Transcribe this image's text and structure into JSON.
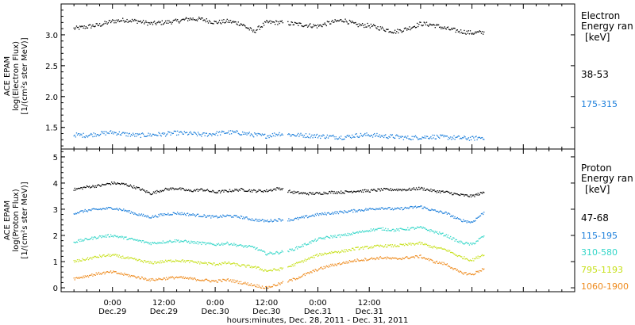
{
  "chart_data": [
    {
      "type": "scatter",
      "panel": "electron",
      "ylabel_lines": [
        "ACE EPAM",
        "log(Electron Flux)",
        "[1/(cm²s ster MeV)]"
      ],
      "ylim": [
        1.15,
        3.5
      ],
      "yticks": [
        "1.5",
        "2.0",
        "2.5",
        "3.0"
      ],
      "legend_title_lines": [
        "Electron",
        "Energy ran",
        "[keV]"
      ],
      "x_range_hours": [
        -12,
        108
      ],
      "data_end_hour": 87,
      "gap_hours": [
        [
          40,
          41
        ]
      ],
      "series": [
        {
          "name": "38-53",
          "color": "#000000",
          "x": [
            -9,
            -6,
            -3,
            0,
            3,
            6,
            9,
            12,
            15,
            18,
            21,
            24,
            27,
            30,
            33,
            36,
            39,
            42,
            45,
            48,
            51,
            54,
            57,
            60,
            63,
            66,
            69,
            72,
            75,
            78,
            81,
            84,
            87
          ],
          "y": [
            3.1,
            3.13,
            3.16,
            3.22,
            3.24,
            3.22,
            3.18,
            3.2,
            3.22,
            3.26,
            3.25,
            3.2,
            3.22,
            3.18,
            3.05,
            3.2,
            3.2,
            3.18,
            3.16,
            3.14,
            3.2,
            3.24,
            3.16,
            3.15,
            3.1,
            3.05,
            3.1,
            3.18,
            3.16,
            3.1,
            3.06,
            3.03,
            3.04
          ]
        },
        {
          "name": "175-315",
          "color": "#1c7fdb",
          "x": [
            -9,
            -6,
            -3,
            0,
            3,
            6,
            9,
            12,
            15,
            18,
            21,
            24,
            27,
            30,
            33,
            36,
            39,
            42,
            45,
            48,
            51,
            54,
            57,
            60,
            63,
            66,
            69,
            72,
            75,
            78,
            81,
            84,
            87
          ],
          "y": [
            1.38,
            1.37,
            1.4,
            1.42,
            1.39,
            1.37,
            1.38,
            1.39,
            1.41,
            1.4,
            1.38,
            1.4,
            1.42,
            1.41,
            1.38,
            1.36,
            1.4,
            1.38,
            1.37,
            1.36,
            1.35,
            1.34,
            1.37,
            1.38,
            1.36,
            1.35,
            1.33,
            1.34,
            1.35,
            1.34,
            1.33,
            1.32,
            1.34
          ]
        }
      ]
    },
    {
      "type": "scatter",
      "panel": "proton",
      "ylabel_lines": [
        "ACE EPAM",
        "log(Proton Flux)",
        "[1/(cm²s ster MeV)]"
      ],
      "ylim": [
        -0.15,
        5.3
      ],
      "yticks": [
        "0",
        "1",
        "2",
        "3",
        "4",
        "5"
      ],
      "legend_title_lines": [
        "Proton",
        "Energy ran",
        "[keV]"
      ],
      "x_range_hours": [
        -12,
        108
      ],
      "data_end_hour": 87,
      "gap_hours": [
        [
          40,
          41
        ]
      ],
      "series": [
        {
          "name": "47-68",
          "color": "#000000",
          "x": [
            -9,
            -6,
            -3,
            0,
            3,
            6,
            9,
            12,
            15,
            18,
            21,
            24,
            27,
            30,
            33,
            36,
            39,
            42,
            45,
            48,
            51,
            54,
            57,
            60,
            63,
            66,
            69,
            72,
            75,
            78,
            81,
            84,
            87
          ],
          "y": [
            3.75,
            3.85,
            3.9,
            4.0,
            3.95,
            3.8,
            3.6,
            3.75,
            3.8,
            3.7,
            3.75,
            3.65,
            3.7,
            3.75,
            3.7,
            3.7,
            3.8,
            3.65,
            3.6,
            3.6,
            3.65,
            3.65,
            3.7,
            3.7,
            3.75,
            3.75,
            3.75,
            3.8,
            3.7,
            3.65,
            3.55,
            3.5,
            3.65
          ]
        },
        {
          "name": "115-195",
          "color": "#1c7fdb",
          "x": [
            -9,
            -6,
            -3,
            0,
            3,
            6,
            9,
            12,
            15,
            18,
            21,
            24,
            27,
            30,
            33,
            36,
            39,
            42,
            45,
            48,
            51,
            54,
            57,
            60,
            63,
            66,
            69,
            72,
            75,
            78,
            81,
            84,
            87
          ],
          "y": [
            2.85,
            2.95,
            3.0,
            3.05,
            2.95,
            2.8,
            2.7,
            2.8,
            2.85,
            2.8,
            2.75,
            2.7,
            2.75,
            2.7,
            2.6,
            2.55,
            2.6,
            2.6,
            2.7,
            2.8,
            2.85,
            2.9,
            2.95,
            3.0,
            3.05,
            3.0,
            3.05,
            3.1,
            2.95,
            2.85,
            2.6,
            2.5,
            2.9
          ]
        },
        {
          "name": "310-580",
          "color": "#33d6c8",
          "x": [
            -9,
            -6,
            -3,
            0,
            3,
            6,
            9,
            12,
            15,
            18,
            21,
            24,
            27,
            30,
            33,
            36,
            39,
            42,
            45,
            48,
            51,
            54,
            57,
            60,
            63,
            66,
            69,
            72,
            75,
            78,
            81,
            84,
            87
          ],
          "y": [
            1.75,
            1.85,
            1.95,
            2.0,
            1.9,
            1.8,
            1.7,
            1.75,
            1.8,
            1.75,
            1.7,
            1.65,
            1.7,
            1.6,
            1.55,
            1.3,
            1.35,
            1.45,
            1.65,
            1.85,
            1.95,
            2.0,
            2.1,
            2.2,
            2.25,
            2.2,
            2.25,
            2.3,
            2.15,
            2.0,
            1.75,
            1.65,
            2.0
          ]
        },
        {
          "name": "795-1193",
          "color": "#c7e01a",
          "x": [
            -9,
            -6,
            -3,
            0,
            3,
            6,
            9,
            12,
            15,
            18,
            21,
            24,
            27,
            30,
            33,
            36,
            39,
            42,
            45,
            48,
            51,
            54,
            57,
            60,
            63,
            66,
            69,
            72,
            75,
            78,
            81,
            84,
            87
          ],
          "y": [
            1.0,
            1.1,
            1.2,
            1.25,
            1.15,
            1.05,
            0.95,
            1.0,
            1.05,
            1.0,
            0.95,
            0.9,
            0.95,
            0.85,
            0.8,
            0.65,
            0.7,
            0.85,
            1.05,
            1.25,
            1.35,
            1.4,
            1.5,
            1.55,
            1.6,
            1.6,
            1.65,
            1.7,
            1.55,
            1.45,
            1.2,
            1.05,
            1.3
          ]
        },
        {
          "name": "1060-1900",
          "color": "#ee8a1c",
          "x": [
            -9,
            -6,
            -3,
            0,
            3,
            6,
            9,
            12,
            15,
            18,
            21,
            24,
            27,
            30,
            33,
            36,
            39,
            42,
            45,
            48,
            51,
            54,
            57,
            60,
            63,
            66,
            69,
            72,
            75,
            78,
            81,
            84,
            87
          ],
          "y": [
            0.35,
            0.45,
            0.55,
            0.6,
            0.5,
            0.4,
            0.3,
            0.35,
            0.4,
            0.35,
            0.3,
            0.25,
            0.3,
            0.2,
            0.1,
            0.0,
            0.15,
            0.3,
            0.5,
            0.7,
            0.85,
            0.95,
            1.05,
            1.1,
            1.15,
            1.1,
            1.15,
            1.2,
            1.0,
            0.9,
            0.6,
            0.5,
            0.75
          ]
        }
      ]
    }
  ],
  "xaxis": {
    "ticks": [
      {
        "hour": 0,
        "time": "0:00",
        "date": "Dec.29"
      },
      {
        "hour": 12,
        "time": "12:00",
        "date": "Dec.29"
      },
      {
        "hour": 24,
        "time": "0:00",
        "date": "Dec.30"
      },
      {
        "hour": 36,
        "time": "12:00",
        "date": "Dec.30"
      },
      {
        "hour": 48,
        "time": "0:00",
        "date": "Dec.31"
      },
      {
        "hour": 60,
        "time": "12:00",
        "date": "Dec.31"
      }
    ],
    "label": "hours:minutes, Dec. 28, 2011 - Dec. 31, 2011"
  }
}
